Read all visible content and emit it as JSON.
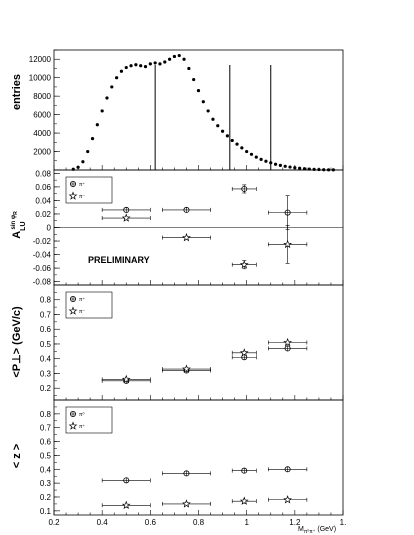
{
  "chart_data": [
    {
      "type": "scatter",
      "ylabel": "entries",
      "ylim": [
        0,
        13000
      ],
      "y_ticks": [
        "2000",
        "4000",
        "6000",
        "8000",
        "10000",
        "12000"
      ],
      "x": [
        0.28,
        0.3,
        0.32,
        0.34,
        0.36,
        0.38,
        0.4,
        0.42,
        0.44,
        0.46,
        0.48,
        0.5,
        0.52,
        0.54,
        0.56,
        0.58,
        0.6,
        0.62,
        0.64,
        0.66,
        0.68,
        0.7,
        0.72,
        0.74,
        0.76,
        0.78,
        0.8,
        0.82,
        0.84,
        0.86,
        0.88,
        0.9,
        0.92,
        0.94,
        0.96,
        0.98,
        1.0,
        1.02,
        1.04,
        1.06,
        1.08,
        1.1,
        1.12,
        1.14,
        1.16,
        1.18,
        1.2,
        1.22,
        1.24,
        1.26,
        1.28,
        1.3,
        1.32,
        1.34,
        1.36
      ],
      "y": [
        80,
        300,
        900,
        2000,
        3400,
        4900,
        6400,
        7800,
        9000,
        10000,
        10700,
        11100,
        11300,
        11400,
        11300,
        11200,
        11500,
        11600,
        11500,
        11700,
        12000,
        12300,
        12400,
        12000,
        11000,
        9800,
        8600,
        7400,
        6400,
        5500,
        4800,
        4200,
        3700,
        3200,
        2800,
        2400,
        2000,
        1700,
        1400,
        1150,
        950,
        780,
        620,
        500,
        400,
        320,
        250,
        190,
        140,
        100,
        70,
        50,
        30,
        20,
        10
      ],
      "vertical_lines": [
        0.62,
        0.93,
        1.1
      ]
    },
    {
      "type": "scatter",
      "ylabel_main": "A",
      "ylabel_sub": "LU",
      "ylabel_sup": "sin φ",
      "ylabel_sup_sub": "R",
      "ylim": [
        -0.085,
        0.085
      ],
      "y_ticks": [
        "-0.08",
        "-0.06",
        "-0.04",
        "-0.02",
        "0",
        "0.02",
        "0.04",
        "0.06",
        "0.08"
      ],
      "annotation": "PRELIMINARY",
      "series": [
        {
          "name": "π⁺",
          "marker": "circle-cross",
          "x": [
            0.5,
            0.75,
            0.99,
            1.17
          ],
          "y": [
            0.026,
            0.026,
            0.057,
            0.022
          ],
          "xerr": [
            0.1,
            0.1,
            0.05,
            0.08
          ],
          "yerr": [
            0.003,
            0.003,
            0.006,
            0.025
          ]
        },
        {
          "name": "π⁻",
          "marker": "star",
          "x": [
            0.5,
            0.75,
            0.99,
            1.17
          ],
          "y": [
            0.014,
            -0.015,
            -0.055,
            -0.025
          ],
          "xerr": [
            0.1,
            0.1,
            0.05,
            0.08
          ],
          "yerr": [
            0.003,
            0.003,
            0.006,
            0.028
          ]
        }
      ]
    },
    {
      "type": "scatter",
      "ylabel": "<P⊥> (GeV/c)",
      "ylim": [
        0.12,
        0.9
      ],
      "y_ticks": [
        "0.2",
        "0.3",
        "0.4",
        "0.5",
        "0.6",
        "0.7",
        "0.8"
      ],
      "series": [
        {
          "name": "π⁺",
          "marker": "circle-cross",
          "x": [
            0.5,
            0.75,
            0.99,
            1.17
          ],
          "y": [
            0.25,
            0.32,
            0.41,
            0.47
          ],
          "xerr": [
            0.1,
            0.1,
            0.05,
            0.08
          ],
          "yerr": [
            0.004,
            0.004,
            0.006,
            0.01
          ]
        },
        {
          "name": "π⁻",
          "marker": "star",
          "x": [
            0.5,
            0.75,
            0.99,
            1.17
          ],
          "y": [
            0.26,
            0.33,
            0.44,
            0.51
          ],
          "xerr": [
            0.1,
            0.1,
            0.05,
            0.08
          ],
          "yerr": [
            0.004,
            0.004,
            0.006,
            0.01
          ]
        }
      ]
    },
    {
      "type": "scatter",
      "ylabel": "< z >",
      "ylim": [
        0.07,
        0.9
      ],
      "y_ticks": [
        "0.1",
        "0.2",
        "0.3",
        "0.4",
        "0.5",
        "0.6",
        "0.7",
        "0.8"
      ],
      "xlabel_main": "M",
      "xlabel_sub": "π⁰π⁺",
      "xlabel_unit": "(GeV)",
      "xlim": [
        0.2,
        1.4
      ],
      "x_ticks": [
        "0.2",
        "0.4",
        "0.6",
        "0.8",
        "1",
        "1.2",
        "1."
      ],
      "series": [
        {
          "name": "π⁰",
          "marker": "circle-cross",
          "x": [
            0.5,
            0.75,
            0.99,
            1.17
          ],
          "y": [
            0.32,
            0.37,
            0.39,
            0.4
          ],
          "xerr": [
            0.1,
            0.1,
            0.05,
            0.08
          ],
          "yerr": [
            0.004,
            0.004,
            0.006,
            0.01
          ]
        },
        {
          "name": "π⁺",
          "marker": "star",
          "x": [
            0.5,
            0.75,
            0.99,
            1.17
          ],
          "y": [
            0.14,
            0.15,
            0.17,
            0.18
          ],
          "xerr": [
            0.1,
            0.1,
            0.05,
            0.08
          ],
          "yerr": [
            0.004,
            0.004,
            0.006,
            0.01
          ]
        }
      ]
    }
  ]
}
